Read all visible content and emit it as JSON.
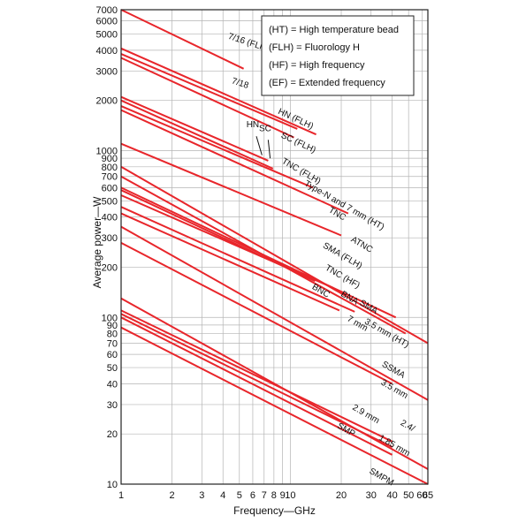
{
  "chart_data": {
    "type": "line",
    "xlabel": "Frequency—GHz",
    "ylabel": "Average power—W",
    "x_scale": "log",
    "y_scale": "log",
    "xlim": [
      1,
      65
    ],
    "ylim": [
      10,
      7000
    ],
    "grid": true,
    "x_ticks": [
      {
        "value": 1,
        "label": "1"
      },
      {
        "value": 2,
        "label": "2"
      },
      {
        "value": 3,
        "label": "3"
      },
      {
        "value": 4,
        "label": "4"
      },
      {
        "value": 5,
        "label": "5"
      },
      {
        "value": 6,
        "label": "6"
      },
      {
        "value": 7,
        "label": "7"
      },
      {
        "value": 8,
        "label": "8"
      },
      {
        "value": 9,
        "label": "9"
      },
      {
        "value": 10,
        "label": "10"
      },
      {
        "value": 20,
        "label": "20"
      },
      {
        "value": 30,
        "label": "30"
      },
      {
        "value": 40,
        "label": "40"
      },
      {
        "value": 50,
        "label": "50"
      },
      {
        "value": 60,
        "label": "60"
      },
      {
        "value": 65,
        "label": "65"
      }
    ],
    "y_ticks": [
      {
        "value": 10,
        "label": "10"
      },
      {
        "value": 20,
        "label": "20"
      },
      {
        "value": 30,
        "label": "30"
      },
      {
        "value": 40,
        "label": "40"
      },
      {
        "value": 50,
        "label": "50"
      },
      {
        "value": 60,
        "label": "60"
      },
      {
        "value": 70,
        "label": "70"
      },
      {
        "value": 80,
        "label": "80"
      },
      {
        "value": 90,
        "label": "90"
      },
      {
        "value": 100,
        "label": "100"
      },
      {
        "value": 200,
        "label": "200"
      },
      {
        "value": 300,
        "label": "300"
      },
      {
        "value": 400,
        "label": "400"
      },
      {
        "value": 500,
        "label": "500"
      },
      {
        "value": 600,
        "label": "600"
      },
      {
        "value": 700,
        "label": "700"
      },
      {
        "value": 800,
        "label": "800"
      },
      {
        "value": 900,
        "label": "900"
      },
      {
        "value": 1000,
        "label": "1000"
      },
      {
        "value": 2000,
        "label": "2000"
      },
      {
        "value": 3000,
        "label": "3000"
      },
      {
        "value": 4000,
        "label": "4000"
      },
      {
        "value": 5000,
        "label": "5000"
      },
      {
        "value": 6000,
        "label": "6000"
      },
      {
        "value": 7000,
        "label": "7000"
      }
    ],
    "series": [
      {
        "name": "7/16 (FLH)",
        "x": [
          1,
          5.3
        ],
        "y": [
          7000,
          3100
        ]
      },
      {
        "name": "7/18",
        "x": [
          1,
          14.2
        ],
        "y": [
          4100,
          1250
        ]
      },
      {
        "name": "HN (FLH)",
        "x": [
          1,
          11
        ],
        "y": [
          3800,
          1350
        ]
      },
      {
        "name": "SC (FLH)",
        "x": [
          1,
          10.5
        ],
        "y": [
          3600,
          1200
        ]
      },
      {
        "name": "HN",
        "x": [
          1,
          7.4
        ],
        "y": [
          2100,
          870
        ]
      },
      {
        "name": "SC",
        "x": [
          1,
          7.9
        ],
        "y": [
          2000,
          780
        ]
      },
      {
        "name": "TNC (FLH)",
        "x": [
          1,
          13.6
        ],
        "y": [
          1850,
          600
        ]
      },
      {
        "name": "Type-N and 7 mm (HT)",
        "x": [
          1,
          22
        ],
        "y": [
          1750,
          420
        ]
      },
      {
        "name": "TNC",
        "x": [
          1,
          20
        ],
        "y": [
          1100,
          310
        ]
      },
      {
        "name": "ATNC",
        "x": [
          1,
          65
        ],
        "y": [
          800,
          70
        ]
      },
      {
        "name": "SMA (FLH)",
        "x": [
          1,
          48
        ],
        "y": [
          700,
          80
        ]
      },
      {
        "name": "TNC (HF)",
        "x": [
          1,
          42
        ],
        "y": [
          600,
          100
        ]
      },
      {
        "name": "BNC",
        "x": [
          1,
          14
        ],
        "y": [
          580,
          165
        ]
      },
      {
        "name": "BNA",
        "x": [
          1,
          18
        ],
        "y": [
          540,
          150
        ]
      },
      {
        "name": "SMA",
        "x": [
          1,
          24
        ],
        "y": [
          460,
          108
        ]
      },
      {
        "name": "7 mm",
        "x": [
          1,
          19.5
        ],
        "y": [
          420,
          110
        ]
      },
      {
        "name": "3.5 mm (HT)",
        "x": [
          1,
          65
        ],
        "y": [
          350,
          32
        ]
      },
      {
        "name": "SSMA",
        "x": [
          1,
          40
        ],
        "y": [
          280,
          40
        ]
      },
      {
        "name": "3.5 mm",
        "x": [
          1,
          65
        ],
        "y": [
          130,
          12.3
        ]
      },
      {
        "name": "2.9 mm",
        "x": [
          1,
          40
        ],
        "y": [
          110,
          18
        ]
      },
      {
        "name": "2.4/1.85 mm",
        "x": [
          1,
          40
        ],
        "y": [
          105,
          16.7
        ]
      },
      {
        "name": "SMP",
        "x": [
          1,
          40
        ],
        "y": [
          100,
          15
        ]
      },
      {
        "name": "SMPM",
        "x": [
          1,
          65
        ],
        "y": [
          87,
          10
        ]
      }
    ],
    "series_labels": [
      {
        "text": "7/16 (FLH)",
        "x": 5.6,
        "y": 4300,
        "rotate": 18
      },
      {
        "text": "7/18",
        "x": 5.0,
        "y": 2450,
        "rotate": 18
      },
      {
        "text": "HN (FLH)",
        "x": 10.6,
        "y": 1500,
        "rotate": 25
      },
      {
        "text": "SC (FLH)",
        "x": 11.0,
        "y": 1080,
        "rotate": 25
      },
      {
        "text": "HN",
        "x": 6.0,
        "y": 1380,
        "rotate": 0
      },
      {
        "text": "SC",
        "x": 7.1,
        "y": 1310,
        "rotate": 0
      },
      {
        "text": "TNC (FLH)",
        "x": 11.4,
        "y": 730,
        "rotate": 30
      },
      {
        "text": "Type-N and 7 mm (HT)",
        "x": 20.5,
        "y": 455,
        "rotate": 30
      },
      {
        "text": "TNC",
        "x": 18.6,
        "y": 405,
        "rotate": 30
      },
      {
        "text": "ATNC",
        "x": 26.0,
        "y": 265,
        "rotate": 30
      },
      {
        "text": "SMA (FLH)",
        "x": 20.0,
        "y": 227,
        "rotate": 30
      },
      {
        "text": "TNC (HF)",
        "x": 20.0,
        "y": 170,
        "rotate": 30
      },
      {
        "text": "BNC",
        "x": 14.9,
        "y": 140,
        "rotate": 30
      },
      {
        "text": "BNA",
        "x": 22.0,
        "y": 127,
        "rotate": 30
      },
      {
        "text": "SMA",
        "x": 28.5,
        "y": 112,
        "rotate": 30
      },
      {
        "text": "7 mm",
        "x": 24.5,
        "y": 89,
        "rotate": 30
      },
      {
        "text": "3.5 mm (HT)",
        "x": 36.5,
        "y": 78,
        "rotate": 30
      },
      {
        "text": "SSMA",
        "x": 40.0,
        "y": 47,
        "rotate": 30
      },
      {
        "text": "3.5 mm",
        "x": 40.5,
        "y": 36,
        "rotate": 30
      },
      {
        "text": "2.9 mm",
        "x": 27.5,
        "y": 25.5,
        "rotate": 30
      },
      {
        "text": "2.4/",
        "x": 48.5,
        "y": 21.7,
        "rotate": 30
      },
      {
        "text": "1.85 mm",
        "x": 40.5,
        "y": 16.5,
        "rotate": 30
      },
      {
        "text": "SMP",
        "x": 21.0,
        "y": 20.5,
        "rotate": 30
      },
      {
        "text": "SMPM",
        "x": 34.0,
        "y": 10.7,
        "rotate": 30
      }
    ],
    "legend": {
      "placement": "top-right",
      "entries": [
        "(HT) = High temperature bead",
        "(FLH) = Fluorology H",
        "(HF) = High frequency",
        "(EF) = Extended frequency"
      ]
    },
    "colors": {
      "series": "#e8262b",
      "grid": "#b4b4b4",
      "axis": "#222222",
      "background": "#ffffff"
    }
  }
}
